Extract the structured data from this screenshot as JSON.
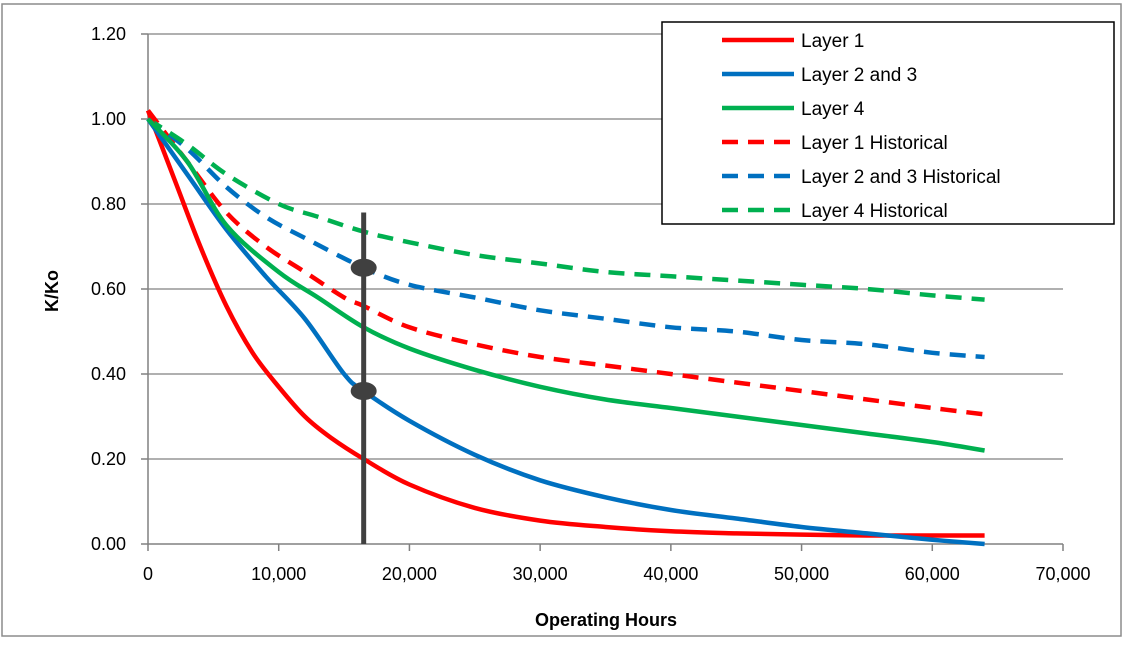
{
  "chart_data": {
    "type": "line",
    "title": "",
    "xlabel": "Operating Hours",
    "ylabel": "K/Ko",
    "xlim": [
      0,
      70000
    ],
    "ylim": [
      0,
      1.2
    ],
    "x_ticks": [
      0,
      10000,
      20000,
      30000,
      40000,
      50000,
      60000,
      70000
    ],
    "x_tick_labels": [
      "0",
      "10,000",
      "20,000",
      "30,000",
      "40,000",
      "50,000",
      "60,000",
      "70,000"
    ],
    "y_ticks": [
      0,
      0.2,
      0.4,
      0.6,
      0.8,
      1.0,
      1.2
    ],
    "y_tick_labels": [
      "0.00",
      "0.20",
      "0.40",
      "0.60",
      "0.80",
      "1.00",
      "1.20"
    ],
    "grid": "horizontal",
    "legend_position": "top-right",
    "series": [
      {
        "name": "Layer 1",
        "color": "#FF0000",
        "dash": "solid",
        "x": [
          0,
          2000,
          4000,
          6000,
          8000,
          10000,
          12000,
          14000,
          16500,
          20000,
          25000,
          30000,
          35000,
          40000,
          45000,
          50000,
          55000,
          60000,
          64000
        ],
        "y": [
          1.02,
          0.86,
          0.7,
          0.56,
          0.45,
          0.37,
          0.3,
          0.25,
          0.2,
          0.14,
          0.085,
          0.055,
          0.04,
          0.03,
          0.025,
          0.022,
          0.02,
          0.02,
          0.02
        ]
      },
      {
        "name": "Layer 2 and 3",
        "color": "#0070C0",
        "dash": "solid",
        "x": [
          0,
          3000,
          6000,
          9000,
          12000,
          15000,
          16500,
          20000,
          25000,
          30000,
          35000,
          40000,
          45000,
          50000,
          55000,
          60000,
          64000
        ],
        "y": [
          1.0,
          0.87,
          0.74,
          0.63,
          0.53,
          0.4,
          0.36,
          0.29,
          0.21,
          0.15,
          0.11,
          0.08,
          0.06,
          0.04,
          0.025,
          0.01,
          0.0
        ]
      },
      {
        "name": "Layer 4",
        "color": "#00B050",
        "dash": "solid",
        "x": [
          0,
          3000,
          6000,
          10000,
          13000,
          16500,
          20000,
          25000,
          30000,
          35000,
          40000,
          45000,
          50000,
          55000,
          60000,
          64000
        ],
        "y": [
          1.0,
          0.9,
          0.75,
          0.64,
          0.58,
          0.51,
          0.46,
          0.41,
          0.37,
          0.34,
          0.32,
          0.3,
          0.28,
          0.26,
          0.24,
          0.22
        ]
      },
      {
        "name": "Layer 1 Historical",
        "color": "#FF0000",
        "dash": "dashed",
        "x": [
          0,
          3000,
          6000,
          9000,
          12000,
          15000,
          16500,
          20000,
          25000,
          30000,
          35000,
          40000,
          45000,
          50000,
          55000,
          60000,
          64000
        ],
        "y": [
          1.02,
          0.9,
          0.78,
          0.7,
          0.64,
          0.58,
          0.56,
          0.51,
          0.47,
          0.44,
          0.42,
          0.4,
          0.38,
          0.36,
          0.34,
          0.32,
          0.305
        ]
      },
      {
        "name": "Layer 2 and 3 Historical",
        "color": "#0070C0",
        "dash": "dashed",
        "x": [
          0,
          3000,
          6000,
          9000,
          12000,
          16500,
          20000,
          25000,
          30000,
          35000,
          40000,
          45000,
          50000,
          55000,
          60000,
          64000
        ],
        "y": [
          1.0,
          0.93,
          0.84,
          0.77,
          0.72,
          0.65,
          0.61,
          0.58,
          0.55,
          0.53,
          0.51,
          0.5,
          0.48,
          0.47,
          0.45,
          0.44
        ]
      },
      {
        "name": "Layer 4 Historical",
        "color": "#00B050",
        "dash": "dashed",
        "x": [
          0,
          3000,
          6000,
          10000,
          13000,
          16500,
          20000,
          25000,
          30000,
          35000,
          40000,
          45000,
          50000,
          55000,
          60000,
          64000
        ],
        "y": [
          1.0,
          0.94,
          0.87,
          0.8,
          0.77,
          0.735,
          0.71,
          0.68,
          0.66,
          0.64,
          0.63,
          0.62,
          0.61,
          0.6,
          0.585,
          0.575
        ]
      }
    ],
    "annotations": {
      "vertical_line": {
        "x": 16500,
        "y_from": 0,
        "y_to": 0.78,
        "color": "#404040"
      },
      "markers": [
        {
          "x": 16500,
          "y": 0.65,
          "color": "#404040"
        },
        {
          "x": 16500,
          "y": 0.36,
          "color": "#404040"
        }
      ]
    }
  }
}
